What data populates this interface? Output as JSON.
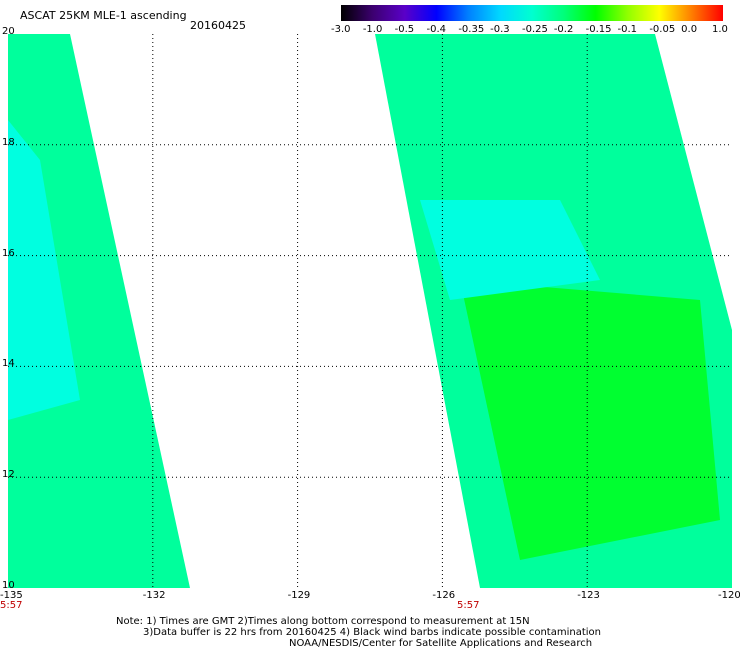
{
  "header": {
    "title": "ASCAT 25KM MLE-1 ascending",
    "date": "20160425"
  },
  "colorbar": {
    "labels": [
      "-3.0",
      "-1.0",
      "-0.5",
      "-0.4",
      "-0.35",
      "-0.3",
      "-0.25",
      "-0.2",
      "-0.15",
      "-0.1",
      "-0.05",
      "0.0",
      "1.0"
    ],
    "colors": [
      "#000000",
      "#3c0070",
      "#5a00c8",
      "#0000ff",
      "#0080ff",
      "#00d8ff",
      "#00ffd0",
      "#00ff7a",
      "#00ff00",
      "#90ff00",
      "#ffff00",
      "#ff8000",
      "#ff0000"
    ]
  },
  "axes": {
    "x_ticks": [
      "-135",
      "-132",
      "-129",
      "-126",
      "-123",
      "-120"
    ],
    "y_ticks": [
      "20",
      "18",
      "16",
      "14",
      "12",
      "10"
    ],
    "x_range": [
      -135,
      -120
    ],
    "y_range": [
      10,
      20
    ]
  },
  "swaths": {
    "left_time": "5:57",
    "right_time": "5:57",
    "color_main": "#00ff9c",
    "color_alt": "#00ffe0",
    "color_green": "#00ff30"
  },
  "notes": {
    "line1": "Note: 1) Times are GMT 2)Times along bottom correspond to measurement at 15N",
    "line2": "3)Data buffer is 22 hrs from 20160425 4) Black wind barbs indicate possible contamination",
    "line3": "NOAA/NESDIS/Center for Satellite Applications and Research"
  }
}
